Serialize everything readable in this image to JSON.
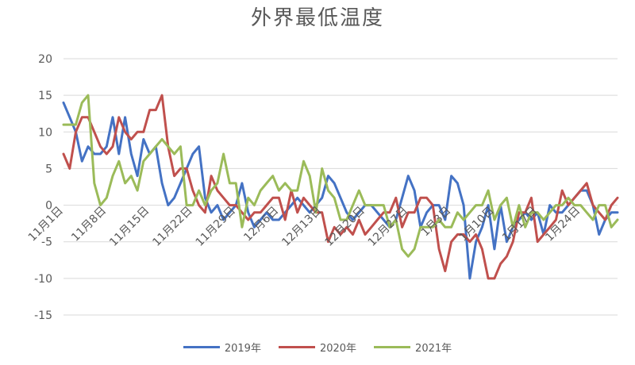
{
  "chart_data": {
    "type": "line",
    "title": "外界最低温度",
    "xlabel": "",
    "ylabel": "",
    "ylim": [
      -15,
      20
    ],
    "yticks": [
      20,
      15,
      10,
      5,
      0,
      -5,
      -10,
      -15
    ],
    "grid": true,
    "legend_position": "bottom",
    "x_tick_labels": [
      "11月1日",
      "11月8日",
      "11月15日",
      "11月22日",
      "11月29日",
      "12月6日",
      "12月13日",
      "12月20日",
      "12月27日",
      "1月3日",
      "1月10日",
      "1月17日",
      "1月24日"
    ],
    "series": [
      {
        "name": "2019年",
        "color": "#4472C4",
        "values": [
          14,
          12,
          10,
          6,
          8,
          7,
          7,
          8,
          12,
          7,
          12,
          7,
          4,
          9,
          7,
          8,
          3,
          0,
          1,
          3,
          5,
          7,
          8,
          1,
          -1,
          0,
          -2,
          -1,
          0,
          3,
          -1,
          -3,
          -2,
          -1,
          -2,
          -2,
          -1,
          0,
          1,
          0,
          -1,
          0,
          1,
          4,
          3,
          1,
          -1,
          -2,
          -1,
          0,
          0,
          -1,
          -2,
          -3,
          -2,
          1,
          4,
          2,
          -3,
          -1,
          0,
          0,
          -2,
          4,
          3,
          0,
          -10,
          -5,
          -3,
          0,
          -6,
          0,
          -5,
          -3,
          -2,
          -1,
          -2,
          -1,
          -4,
          0,
          -1,
          -1,
          0,
          1,
          2,
          2,
          0,
          -4,
          -2,
          -1,
          -1
        ]
      },
      {
        "name": "2020年",
        "color": "#C0504D",
        "values": [
          7,
          5,
          10,
          12,
          12,
          10,
          8,
          7,
          8,
          12,
          10,
          9,
          10,
          10,
          13,
          13,
          15,
          8,
          4,
          5,
          5,
          2,
          0,
          -1,
          4,
          2,
          1,
          0,
          0,
          -1,
          -2,
          -1,
          -1,
          0,
          1,
          1,
          -2,
          2,
          -1,
          1,
          0,
          -1,
          -1,
          -5,
          -3,
          -4,
          -3,
          -4,
          -2,
          -4,
          -3,
          -2,
          -1,
          -1,
          1,
          -3,
          -1,
          -1,
          1,
          1,
          0,
          -6,
          -9,
          -5,
          -4,
          -4,
          -5,
          -4,
          -6,
          -10,
          -10,
          -8,
          -7,
          -5,
          -1,
          -1,
          1,
          -5,
          -4,
          -3,
          -2,
          2,
          0,
          1,
          2,
          3,
          0,
          -1,
          -2,
          0,
          1
        ]
      },
      {
        "name": "2021年",
        "color": "#9BBB59",
        "values": [
          11,
          11,
          11,
          14,
          15,
          3,
          0,
          1,
          4,
          6,
          3,
          4,
          2,
          6,
          7,
          8,
          9,
          8,
          7,
          8,
          0,
          0,
          2,
          0,
          2,
          3,
          7,
          3,
          3,
          -3,
          1,
          0,
          2,
          3,
          4,
          2,
          3,
          2,
          2,
          6,
          4,
          -1,
          5,
          2,
          1,
          -2,
          -2,
          0,
          2,
          0,
          0,
          0,
          0,
          -3,
          -2,
          -6,
          -7,
          -6,
          -3,
          -3,
          -3,
          -2,
          -3,
          -3,
          -1,
          -2,
          -1,
          0,
          0,
          2,
          -2,
          0,
          1,
          -3,
          0,
          -3,
          -1,
          -1,
          -2,
          -1,
          0,
          0,
          1,
          0,
          0,
          -1,
          -2,
          0,
          0,
          -3,
          -2
        ]
      }
    ]
  }
}
